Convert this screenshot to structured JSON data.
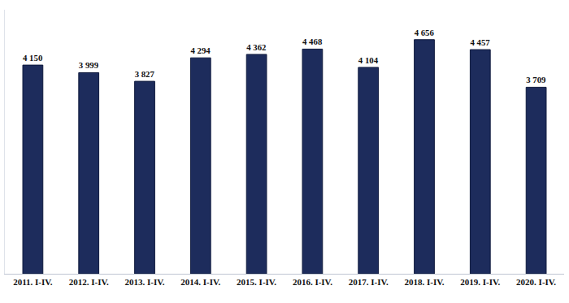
{
  "chart_data": {
    "type": "bar",
    "categories": [
      "2011. I-IV.",
      "2012. I-IV.",
      "2013. I-IV.",
      "2014. I-IV.",
      "2015. I-IV.",
      "2016. I-IV.",
      "2017. I-IV.",
      "2018. I-IV.",
      "2019. I-IV.",
      "2020. I-IV."
    ],
    "values": [
      4150,
      3999,
      3827,
      4294,
      4362,
      4468,
      4104,
      4656,
      4457,
      3709
    ],
    "value_labels": [
      "4 150",
      "3 999",
      "3 827",
      "4 294",
      "4 362",
      "4 468",
      "4 104",
      "4 656",
      "4 457",
      "3 709"
    ],
    "color": "#1d2c5c",
    "ylim": [
      0,
      5250
    ],
    "yticks": [],
    "grid": false,
    "data_labels": true,
    "tick_labels": "x"
  }
}
